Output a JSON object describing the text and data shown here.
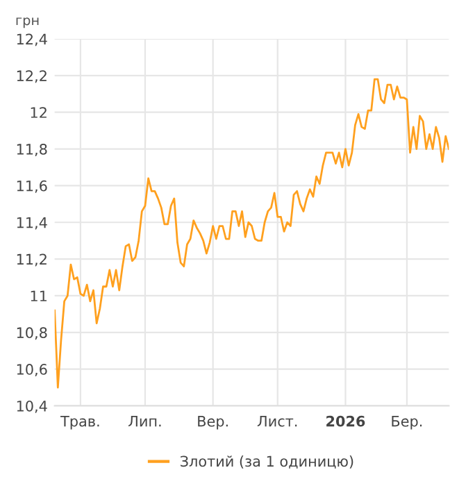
{
  "chart_data": {
    "type": "line",
    "ylabel": "грн",
    "grid": true,
    "legend": "bottom",
    "marker": "none",
    "line_style": "solid",
    "categories": [
      null,
      null,
      null,
      null,
      null,
      null,
      null,
      null,
      "Трав.",
      null,
      null,
      null,
      null,
      null,
      null,
      null,
      null,
      null,
      null,
      null,
      null,
      null,
      null,
      null,
      null,
      null,
      null,
      null,
      "Лип.",
      null,
      null,
      null,
      null,
      null,
      null,
      null,
      null,
      null,
      null,
      null,
      null,
      null,
      null,
      null,
      null,
      null,
      null,
      null,
      null,
      "Вер.",
      null,
      null,
      null,
      null,
      null,
      null,
      null,
      null,
      null,
      null,
      null,
      null,
      null,
      null,
      null,
      null,
      null,
      null,
      null,
      "Лист.",
      null,
      null,
      null,
      null,
      null,
      null,
      null,
      null,
      null,
      null,
      null,
      null,
      null,
      null,
      null,
      null,
      null,
      null,
      null,
      null,
      "2026",
      null,
      null,
      null,
      null,
      null,
      null,
      null,
      null,
      null,
      null,
      null,
      null,
      null,
      null,
      null,
      null,
      null,
      null,
      "Бер.",
      null,
      null,
      null,
      null,
      null,
      null,
      null,
      null,
      null,
      null,
      null,
      null,
      null
    ],
    "ylim": [
      10.4,
      12.4
    ],
    "yticks": [
      {
        "value": 10.4,
        "label": "10,4"
      },
      {
        "value": 10.6,
        "label": "10,6"
      },
      {
        "value": 10.8,
        "label": "10,8"
      },
      {
        "value": 11,
        "label": "11"
      },
      {
        "value": 11.2,
        "label": "11,2"
      },
      {
        "value": 11.4,
        "label": "11,4"
      },
      {
        "value": 11.6,
        "label": "11,6"
      },
      {
        "value": 11.8,
        "label": "11,8"
      },
      {
        "value": 12,
        "label": "12"
      },
      {
        "value": 12.2,
        "label": "12,2"
      },
      {
        "value": 12.4,
        "label": "12,4"
      }
    ],
    "series": [
      {
        "name": "Злотий (за 1 одиницю)",
        "color": "#ffa01e",
        "values": [
          10.92,
          10.5,
          10.76,
          10.97,
          11.0,
          11.17,
          11.09,
          11.1,
          11.01,
          11.0,
          11.06,
          10.97,
          11.03,
          10.85,
          10.93,
          11.05,
          11.05,
          11.14,
          11.05,
          11.14,
          11.03,
          11.16,
          11.27,
          11.28,
          11.19,
          11.21,
          11.3,
          11.46,
          11.49,
          11.64,
          11.57,
          11.57,
          11.53,
          11.48,
          11.39,
          11.39,
          11.49,
          11.53,
          11.29,
          11.18,
          11.16,
          11.28,
          11.31,
          11.41,
          11.37,
          11.34,
          11.3,
          11.23,
          11.29,
          11.38,
          11.31,
          11.38,
          11.38,
          11.31,
          11.31,
          11.46,
          11.46,
          11.38,
          11.46,
          11.32,
          11.4,
          11.38,
          11.31,
          11.3,
          11.3,
          11.4,
          11.46,
          11.48,
          11.56,
          11.43,
          11.43,
          11.35,
          11.4,
          11.38,
          11.55,
          11.57,
          11.5,
          11.46,
          11.53,
          11.58,
          11.54,
          11.65,
          11.61,
          11.71,
          11.78,
          11.78,
          11.78,
          11.72,
          11.78,
          11.7,
          11.8,
          11.71,
          11.78,
          11.93,
          11.99,
          11.92,
          11.91,
          12.01,
          12.01,
          12.18,
          12.18,
          12.07,
          12.05,
          12.15,
          12.15,
          12.07,
          12.14,
          12.08,
          12.08,
          12.07,
          11.78,
          11.92,
          11.8,
          11.98,
          11.95,
          11.8,
          11.88,
          11.8,
          11.92,
          11.86,
          11.73,
          11.87,
          11.8
        ]
      }
    ]
  }
}
